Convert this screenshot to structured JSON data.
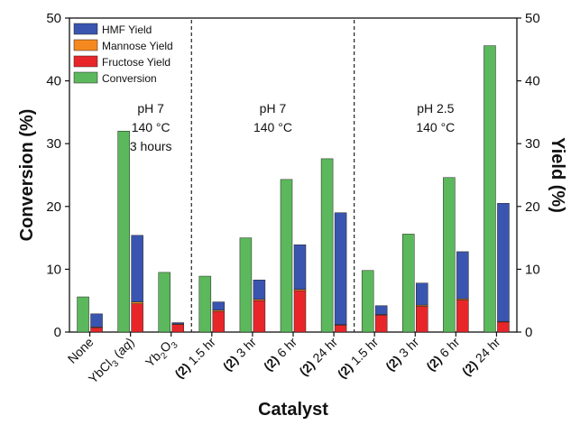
{
  "chart_data": {
    "type": "bar",
    "xlabel": "Catalyst",
    "ylabel_left": "Conversion (%)",
    "ylabel_right": "Yield (%)",
    "ylim": [
      0,
      50
    ],
    "yticks": [
      0,
      10,
      20,
      30,
      40,
      50
    ],
    "categories": [
      {
        "prefix": "",
        "text": "None",
        "sub": "",
        "suffix": ""
      },
      {
        "prefix": "",
        "text": "YbCl",
        "sub": "3",
        "suffix": " (aq)"
      },
      {
        "prefix": "",
        "text": "Yb",
        "sub": "2",
        "suffix": "O",
        "sub2": "3"
      },
      {
        "prefix": "(2)",
        "text": " 1.5 hr",
        "sub": "",
        "suffix": ""
      },
      {
        "prefix": "(2)",
        "text": " 3 hr",
        "sub": "",
        "suffix": ""
      },
      {
        "prefix": "(2)",
        "text": " 6 hr",
        "sub": "",
        "suffix": ""
      },
      {
        "prefix": "(2)",
        "text": " 24 hr",
        "sub": "",
        "suffix": ""
      },
      {
        "prefix": "(2)",
        "text": " 1.5 hr",
        "sub": "",
        "suffix": ""
      },
      {
        "prefix": "(2)",
        "text": " 3 hr",
        "sub": "",
        "suffix": ""
      },
      {
        "prefix": "(2)",
        "text": " 6 hr",
        "sub": "",
        "suffix": ""
      },
      {
        "prefix": "(2)",
        "text": " 24 hr",
        "sub": "",
        "suffix": ""
      }
    ],
    "series": [
      {
        "name": "Conversion",
        "color": "#5cb85c",
        "values": [
          5.6,
          32.0,
          9.5,
          8.9,
          15.0,
          24.3,
          27.6,
          9.8,
          15.6,
          24.6,
          45.6
        ]
      },
      {
        "name": "Fructose Yield",
        "color": "#e8262a",
        "values": [
          0.7,
          4.5,
          1.2,
          3.3,
          5.0,
          6.6,
          1.1,
          2.7,
          4.1,
          5.1,
          1.6
        ]
      },
      {
        "name": "Mannose Yield",
        "color": "#f5891f",
        "values": [
          0.1,
          0.3,
          0.1,
          0.2,
          0.2,
          0.2,
          0.1,
          0.1,
          0.2,
          0.2,
          0.1
        ]
      },
      {
        "name": "HMF Yield",
        "color": "#3a55b0",
        "values": [
          2.1,
          10.6,
          0.2,
          1.3,
          3.1,
          7.1,
          17.8,
          1.4,
          3.5,
          7.5,
          18.8
        ]
      }
    ],
    "legend": {
      "position": "top-left",
      "entries": [
        "HMF Yield",
        "Mannose Yield",
        "Fructose Yield",
        "Conversion"
      ]
    },
    "annotations": [
      {
        "lines": [
          "pH 7",
          "140 °C",
          "3 hours"
        ],
        "group_start": 1,
        "group_end": 2
      },
      {
        "lines": [
          "pH 7",
          "140 °C"
        ],
        "group_start": 3,
        "group_end": 6
      },
      {
        "lines": [
          "pH 2.5",
          "140 °C"
        ],
        "group_start": 7,
        "group_end": 10
      }
    ],
    "dividers_after": [
      2,
      6
    ]
  }
}
